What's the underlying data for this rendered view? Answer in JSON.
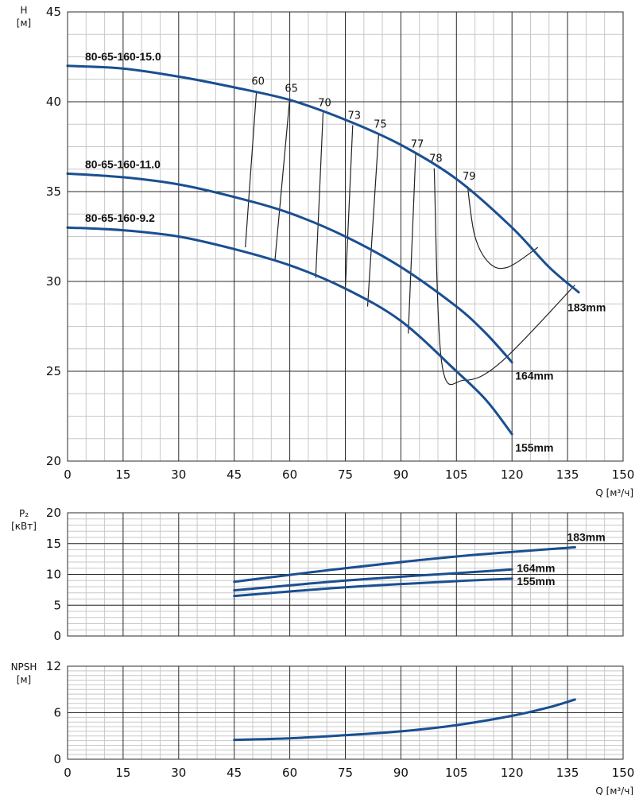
{
  "colors": {
    "curve": "#1a4f91",
    "major_grid": "#2b2b2b",
    "minor_grid": "#c8c8c8",
    "eff": "#222222"
  },
  "chart_data": [
    {
      "id": "head",
      "type": "line",
      "ylabel": "H",
      "yunit": "[м]",
      "xlabel": "",
      "xunit": "Q [м³/ч]",
      "xlim": [
        0,
        150
      ],
      "ylim": [
        20,
        45
      ],
      "xticks": [
        "0",
        "15",
        "30",
        "45",
        "60",
        "75",
        "90",
        "105",
        "120",
        "135",
        "150"
      ],
      "yticks": [
        "20",
        "25",
        "30",
        "35",
        "40",
        "45"
      ],
      "series": [
        {
          "name": "80-65-160-15.0",
          "end_label": "183mm",
          "points": [
            [
              0,
              42.0
            ],
            [
              15,
              41.85
            ],
            [
              30,
              41.4
            ],
            [
              45,
              40.8
            ],
            [
              60,
              40.1
            ],
            [
              75,
              39.0
            ],
            [
              90,
              37.6
            ],
            [
              105,
              35.7
            ],
            [
              120,
              33.0
            ],
            [
              130,
              30.8
            ],
            [
              138,
              29.4
            ]
          ]
        },
        {
          "name": "80-65-160-11.0",
          "end_label": "164mm",
          "points": [
            [
              0,
              36.0
            ],
            [
              15,
              35.8
            ],
            [
              30,
              35.4
            ],
            [
              45,
              34.7
            ],
            [
              60,
              33.8
            ],
            [
              75,
              32.5
            ],
            [
              90,
              30.8
            ],
            [
              105,
              28.6
            ],
            [
              113,
              27.1
            ],
            [
              120,
              25.5
            ]
          ]
        },
        {
          "name": "80-65-160-9.2",
          "end_label": "155mm",
          "points": [
            [
              0,
              33.0
            ],
            [
              15,
              32.85
            ],
            [
              30,
              32.5
            ],
            [
              45,
              31.8
            ],
            [
              60,
              30.9
            ],
            [
              75,
              29.6
            ],
            [
              90,
              27.8
            ],
            [
              105,
              25.0
            ],
            [
              113,
              23.4
            ],
            [
              120,
              21.5
            ]
          ]
        }
      ],
      "efficiency": [
        {
          "label": "60",
          "points": [
            [
              51,
              40.6
            ],
            [
              48,
              31.9
            ]
          ]
        },
        {
          "label": "65",
          "points": [
            [
              60,
              40.2
            ],
            [
              56,
              31.2
            ]
          ]
        },
        {
          "label": "70",
          "points": [
            [
              69,
              39.4
            ],
            [
              67,
              30.2
            ]
          ]
        },
        {
          "label": "73",
          "points": [
            [
              77,
              38.7
            ],
            [
              75,
              29.6
            ]
          ]
        },
        {
          "label": "75",
          "points": [
            [
              84,
              38.2
            ],
            [
              81,
              28.6
            ]
          ]
        },
        {
          "label": "77",
          "points": [
            [
              94,
              37.1
            ],
            [
              92,
              27.1
            ]
          ]
        },
        {
          "label": "78",
          "points": [
            [
              99,
              36.3
            ],
            [
              101,
              25.5
            ],
            [
              107,
              24.5
            ],
            [
              117,
              25.5
            ],
            [
              137,
              29.8
            ]
          ]
        },
        {
          "label": "79",
          "points": [
            [
              108,
              35.3
            ],
            [
              110,
              32.5
            ],
            [
              114,
              31.0
            ],
            [
              119,
              30.8
            ],
            [
              127,
              31.9
            ]
          ]
        }
      ]
    },
    {
      "id": "power",
      "type": "line",
      "ylabel": "P₂",
      "yunit": "[кВт]",
      "xlim": [
        0,
        150
      ],
      "ylim": [
        0,
        20
      ],
      "yticks": [
        "0",
        "5",
        "10",
        "15",
        "20"
      ],
      "series": [
        {
          "name": "183mm",
          "points": [
            [
              45,
              8.8
            ],
            [
              75,
              11.0
            ],
            [
              105,
              12.9
            ],
            [
              137,
              14.4
            ]
          ]
        },
        {
          "name": "164mm",
          "points": [
            [
              45,
              7.4
            ],
            [
              75,
              9.0
            ],
            [
              105,
              10.2
            ],
            [
              120,
              10.8
            ]
          ]
        },
        {
          "name": "155mm",
          "points": [
            [
              45,
              6.5
            ],
            [
              75,
              7.9
            ],
            [
              105,
              8.9
            ],
            [
              120,
              9.3
            ]
          ]
        }
      ]
    },
    {
      "id": "npsh",
      "type": "line",
      "ylabel": "NPSH",
      "yunit": "[м]",
      "xlabel": "",
      "xunit": "Q [м³/ч]",
      "xlim": [
        0,
        150
      ],
      "ylim": [
        0,
        12
      ],
      "xticks": [
        "0",
        "15",
        "30",
        "45",
        "60",
        "75",
        "90",
        "105",
        "120",
        "135",
        "150"
      ],
      "yticks": [
        "0",
        "6",
        "12"
      ],
      "series": [
        {
          "name": "NPSH",
          "points": [
            [
              45,
              2.5
            ],
            [
              60,
              2.7
            ],
            [
              75,
              3.1
            ],
            [
              90,
              3.6
            ],
            [
              105,
              4.4
            ],
            [
              120,
              5.6
            ],
            [
              130,
              6.7
            ],
            [
              137,
              7.7
            ]
          ]
        }
      ]
    }
  ]
}
